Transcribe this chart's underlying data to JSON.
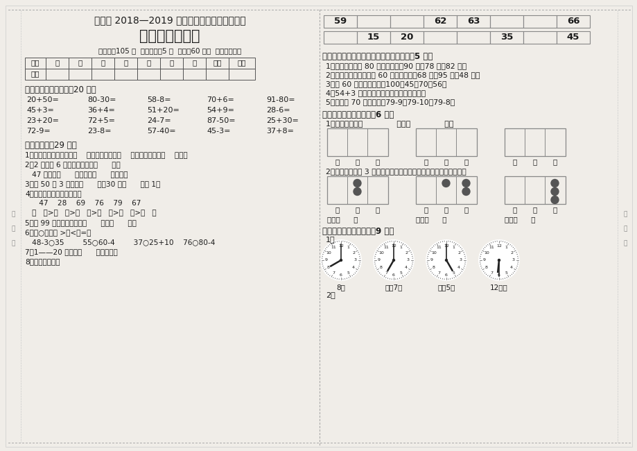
{
  "title1": "武城县 2018—2019 学年第二学期小学期中检测",
  "title2": "一年级数学试题",
  "subtitle": "（满分：105 分  含卷面分：5 分  时间：60 分钟  用铅笔书写）",
  "table_headers": [
    "题序",
    "一",
    "二",
    "三",
    "四",
    "五",
    "六",
    "七",
    "书写",
    "总分"
  ],
  "table_row": [
    "得分",
    "",
    "",
    "",
    "",
    "",
    "",
    "",
    "",
    ""
  ],
  "section1_title": "一、直接写出得数。（20 分）",
  "section1_lines": [
    [
      "20+50=",
      "80-30=",
      "58-8=",
      "70+6=",
      "91-80="
    ],
    [
      "45+3=",
      "36+4=",
      "51+20=",
      "54+9=",
      "28-6="
    ],
    [
      "23+20=",
      "72+5=",
      "24-7=",
      "87-50=",
      "25+30="
    ],
    [
      "72-9=",
      "23-8=",
      "57-40=",
      "45-3=",
      "37+8="
    ]
  ],
  "section2_title": "二、填空。（29 分）",
  "section2_lines": [
    "1、从右边起，第一位是（    ）位，第二位是（    ）位，第三位是（    ）位。",
    "2、2 个十和 6 个一组成的数是（      ）。",
    "   47 里面有（      ）个十和（      ）个一。",
    "3、比 50 多 3 的数是（      ）。30 比（      ）大 1。",
    "4、从大到小排列下面各数。",
    "      47    28    69    76    79    67",
    "   （   ）>（   ）>（   ）>（   ）>（   ）>（   ）",
    "5、和 99 相邻的两个数是（      ）、（      ）。",
    "6、在○里填上 >、<、=。",
    "   48-3○35        55○60-4        37○25+10    76○80-4",
    "7、1——20 中，有（      ）个双数。",
    "8、按顺序填数。"
  ],
  "right_top_table_row1": [
    "59",
    "",
    "",
    "62",
    "63",
    "",
    "",
    "66"
  ],
  "right_top_table_row2": [
    "",
    "15",
    "20",
    "",
    "",
    "35",
    "",
    "45"
  ],
  "section3_title": "三、按要求将你认为合适的答案圈起来。（5 分）",
  "section3_lines": [
    "1、书包的价钱比 80 元少一些。（90 元、78 元、82 元）",
    "2、玩具小汽车的价钱比 60 元贵多了！（68 元、95 元、48 元）",
    "3、和 60 最接近的数。（100、45、70、56）",
    "4、54+3 的和是（四十多、五十、五十多）",
    "5、得数比 70 大的算式（79-9、79-10、79-8）"
  ],
  "section4_title": "四、画一画，写一写。（6 分）",
  "section4_sub1": "1、画珠：五十三              二十六              一百",
  "section4_sub2": "2、在计数器上用 3 颗珠子表示不同的两位数，请你写出这几个数。",
  "section4_write": [
    "写作（      ）",
    "写作（      ）",
    "写作（      ）"
  ],
  "section5_title": "五、连一连，数一数。（9 分）",
  "section5_sub": "1、",
  "clock_labels": [
    "8时",
    "大约7时",
    "大约5时",
    "12时半"
  ],
  "section5_sub2": "2、",
  "bg_color": "#f0ede8",
  "text_color": "#2a2a2a",
  "border_color": "#888888",
  "dotted_color": "#aaaaaa"
}
